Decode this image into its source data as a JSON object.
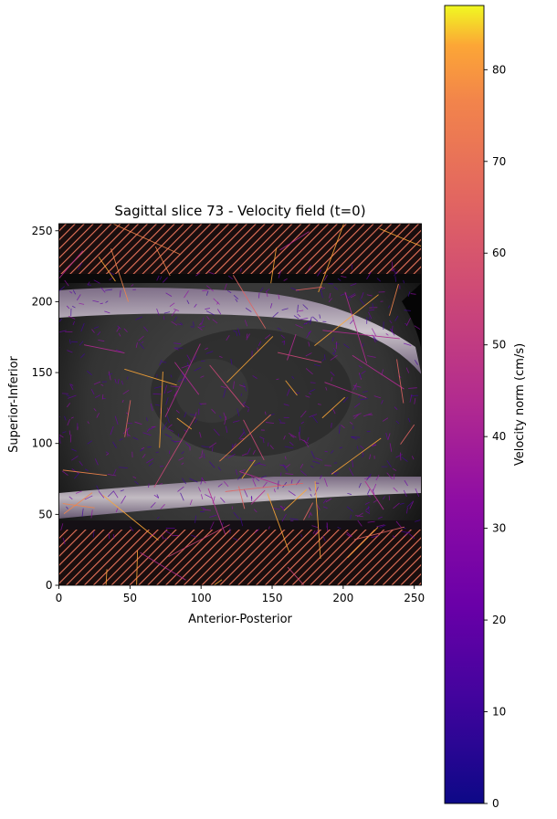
{
  "chart_data": {
    "type": "heatmap",
    "title": "Sagittal slice 73 - Velocity field (t=0)",
    "xlabel": "Anterior-Posterior",
    "ylabel": "Superior-Inferior",
    "xlim": [
      0,
      255
    ],
    "ylim": [
      0,
      255
    ],
    "x_ticks": [
      0,
      50,
      100,
      150,
      200,
      250
    ],
    "y_ticks": [
      0,
      50,
      100,
      150,
      200,
      250
    ],
    "colorbar": {
      "label": "Velocity norm (cm/s)",
      "colormap": "plasma",
      "range": [
        0,
        87
      ],
      "ticks": [
        0,
        10,
        20,
        30,
        40,
        50,
        60,
        70,
        80
      ]
    },
    "masked_regions": [
      {
        "y_range": [
          0,
          40
        ],
        "style": "hatched",
        "color": "#e8735a"
      },
      {
        "y_range": [
          217,
          255
        ],
        "style": "hatched",
        "color": "#e8735a"
      }
    ],
    "grid": false,
    "colors": {
      "hatch": "#e8735a",
      "background_image": "#3a3a3a",
      "bright_band": "#d8d0d8"
    }
  }
}
